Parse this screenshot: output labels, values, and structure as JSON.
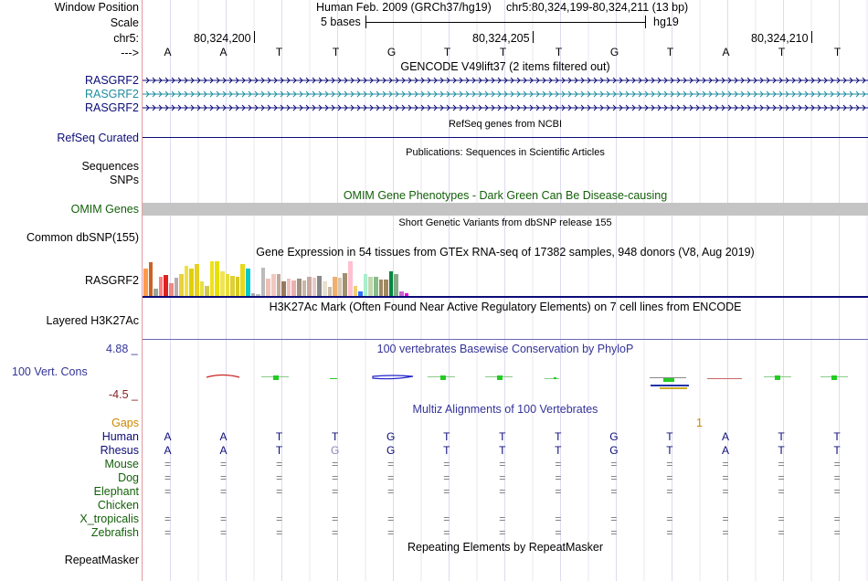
{
  "header": {
    "window_position_label": "Window Position",
    "scale_label": "Scale",
    "chrom_label": "chr5:",
    "strand_label": "--->",
    "assembly": "Human Feb. 2009 (GRCh37/hg19)",
    "position": "chr5:80,324,199-80,324,211 (13 bp)",
    "scale_text": "5 bases",
    "db": "hg19",
    "coords": [
      "80,324,200",
      "80,324,205",
      "80,324,210"
    ]
  },
  "bases": [
    "A",
    "A",
    "T",
    "T",
    "G",
    "T",
    "T",
    "T",
    "G",
    "T",
    "A",
    "T",
    "T"
  ],
  "tracks": {
    "gencode": {
      "title": "GENCODE V49lift37 (2 items filtered out)",
      "items": [
        "RASGRF2",
        "RASGRF2",
        "RASGRF2"
      ],
      "colors": [
        "#0c0c78",
        "#1e8ca0",
        "#0c0c78"
      ]
    },
    "refseq": {
      "title": "RefSeq genes from NCBI",
      "label": "RefSeq Curated",
      "color": "#0c0c78"
    },
    "pubs": {
      "title": "Publications: Sequences in Scientific Articles",
      "labels": [
        "Sequences",
        "SNPs"
      ]
    },
    "omim": {
      "title": "OMIM Gene Phenotypes - Dark Green Can Be Disease-causing",
      "label": "OMIM Genes",
      "color": "#14600a"
    },
    "dbsnp": {
      "title": "Short Genetic Variants from dbSNP release 155",
      "label": "Common dbSNP(155)"
    },
    "gtex": {
      "title": "Gene Expression in 54 tissues from GTEx RNA-seq of 17382 samples, 948 donors (V8, Aug 2019)",
      "label": "RASGRF2",
      "values": [
        0.78,
        0.98,
        0.22,
        0.55,
        0.6,
        0.38,
        0.52,
        0.62,
        0.88,
        0.78,
        0.92,
        0.42,
        0.28,
        1.0,
        1.0,
        0.72,
        0.62,
        0.58,
        0.55,
        0.92,
        0.8,
        0.08,
        0.05,
        0.82,
        0.5,
        0.62,
        0.62,
        0.42,
        0.5,
        0.45,
        0.5,
        0.45,
        0.55,
        0.52,
        0.58,
        0.42,
        0.25,
        0.55,
        0.52,
        0.65,
        1.0,
        0.28,
        0.12,
        0.62,
        0.55,
        0.55,
        0.48,
        0.48,
        0.72,
        0.62,
        0.12,
        0.08,
        0.0,
        0.0
      ],
      "colors": [
        "#ff9a4a",
        "#c86428",
        "#9aa59a",
        "#ff7f7f",
        "#dd2222",
        "#ee8888",
        "#bbaaaa",
        "#e8d040",
        "#f0e040",
        "#e0d000",
        "#e8d020",
        "#e8e040",
        "#d0c850",
        "#f0e020",
        "#e8e000",
        "#f0e450",
        "#e8dc40",
        "#e0d030",
        "#d8c828",
        "#e8d818",
        "#00c8d0",
        "#aaaaaa",
        "#bbbbbb",
        "#bbbbbb",
        "#eec0b8",
        "#f0c8c0",
        "#c0a898",
        "#9a7860",
        "#eec0c0",
        "#e8b0b0",
        "#a09080",
        "#c8b8a8",
        "#c8a8a0",
        "#e8c8c8",
        "#888888",
        "#e8e0d0",
        "#ccbbaa",
        "#eeb070",
        "#d8c8b0",
        "#a09070",
        "#ffc0d0",
        "#f0d070",
        "#3070ff",
        "#aaeecc",
        "#c0d8b0",
        "#88bb88",
        "#a08860",
        "#a08860",
        "#008840",
        "#88aa88",
        "#cc66cc",
        "#ee00ee",
        "#cccccc",
        "#cccccc"
      ]
    },
    "h3k27ac": {
      "title": "H3K27Ac Mark (Often Found Near Active Regulatory Elements) on 7 cell lines from ENCODE",
      "label": "Layered H3K27Ac"
    },
    "phylop": {
      "title": "100 vertebrates Basewise Conservation by PhyloP",
      "label": "100 Vert. Cons",
      "max": "4.88 _",
      "min": "-4.5 _",
      "color": "#333399",
      "min_color": "#882222"
    },
    "multiz": {
      "title": "Multiz Alignments of 100 Vertebrates",
      "gaps_label": "Gaps",
      "gap_marker": "1",
      "species": [
        {
          "name": "Human",
          "color": "#0c0c78",
          "seq": [
            "A",
            "A",
            "T",
            "T",
            "G",
            "T",
            "T",
            "T",
            "G",
            "T",
            "A",
            "T",
            "T"
          ]
        },
        {
          "name": "Rhesus",
          "color": "#0c0c78",
          "seq": [
            "A",
            "A",
            "T",
            "G",
            "G",
            "T",
            "T",
            "T",
            "G",
            "T",
            "A",
            "T",
            "T"
          ]
        },
        {
          "name": "Mouse",
          "color": "#14600a",
          "seq": [
            "=",
            "=",
            "=",
            "=",
            "=",
            "=",
            "=",
            "=",
            "=",
            "=",
            "=",
            "=",
            "="
          ]
        },
        {
          "name": "Dog",
          "color": "#14600a",
          "seq": [
            "=",
            "=",
            "=",
            "=",
            "=",
            "=",
            "=",
            "=",
            "=",
            "=",
            "=",
            "=",
            "="
          ]
        },
        {
          "name": "Elephant",
          "color": "#14600a",
          "seq": [
            "=",
            "=",
            "=",
            "=",
            "=",
            "=",
            "=",
            "=",
            "=",
            "=",
            "=",
            "=",
            "="
          ]
        },
        {
          "name": "Chicken",
          "color": "#14600a",
          "seq": [
            "",
            "",
            "",
            "",
            "",
            "",
            "",
            "",
            "",
            "",
            "",
            "",
            ""
          ]
        },
        {
          "name": "X_tropicalis",
          "color": "#14600a",
          "seq": [
            "=",
            "=",
            "=",
            "=",
            "=",
            "=",
            "=",
            "=",
            "=",
            "=",
            "=",
            "=",
            "="
          ]
        },
        {
          "name": "Zebrafish",
          "color": "#14600a",
          "seq": [
            "=",
            "=",
            "=",
            "=",
            "=",
            "=",
            "=",
            "=",
            "=",
            "=",
            "=",
            "=",
            "="
          ]
        }
      ]
    },
    "repeatmasker": {
      "title": "Repeating Elements by RepeatMasker",
      "label": "RepeatMasker"
    }
  }
}
